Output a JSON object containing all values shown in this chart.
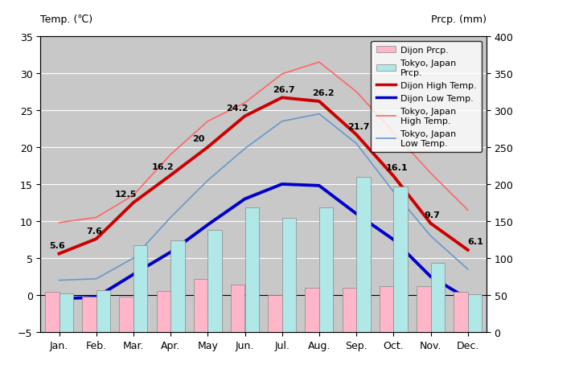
{
  "months": [
    "Jan.",
    "Feb.",
    "Mar.",
    "Apr.",
    "May",
    "Jun.",
    "Jul.",
    "Aug.",
    "Sep.",
    "Oct.",
    "Nov.",
    "Dec."
  ],
  "dijon_high": [
    5.6,
    7.6,
    12.5,
    16.2,
    20.0,
    24.2,
    26.7,
    26.2,
    21.7,
    16.1,
    9.7,
    6.1
  ],
  "dijon_low": [
    -0.5,
    -0.3,
    2.8,
    5.8,
    9.5,
    13.0,
    15.0,
    14.8,
    11.0,
    7.5,
    2.5,
    -0.5
  ],
  "dijon_prcp": [
    54,
    48,
    48,
    55,
    72,
    64,
    50,
    60,
    60,
    62,
    62,
    54
  ],
  "tokyo_high": [
    9.8,
    10.5,
    13.5,
    19.0,
    23.5,
    26.0,
    29.9,
    31.5,
    27.5,
    22.0,
    16.5,
    11.5
  ],
  "tokyo_low": [
    2.0,
    2.2,
    5.0,
    10.5,
    15.5,
    19.8,
    23.5,
    24.5,
    20.5,
    14.0,
    8.0,
    3.5
  ],
  "tokyo_prcp": [
    52,
    56,
    117,
    124,
    138,
    168,
    154,
    168,
    210,
    197,
    93,
    51
  ],
  "dijon_high_color": "#cc0000",
  "dijon_low_color": "#0000cc",
  "tokyo_high_color": "#ff6666",
  "tokyo_low_color": "#6699cc",
  "dijon_prcp_color": "#ffb6c8",
  "tokyo_prcp_color": "#b0e8e8",
  "temp_ylim": [
    -5,
    35
  ],
  "prcp_ylim": [
    0,
    400
  ],
  "temp_yticks": [
    -5,
    0,
    5,
    10,
    15,
    20,
    25,
    30,
    35
  ],
  "prcp_yticks": [
    0,
    50,
    100,
    150,
    200,
    250,
    300,
    350,
    400
  ],
  "title_left": "Temp. (℃)",
  "title_right": "Prcp. (mm)",
  "bg_color": "#c8c8c8",
  "label_dijon_high": [
    "5.6",
    "7.6",
    "12.5",
    "16.2",
    "20",
    "24.2",
    "26.7",
    "26.2",
    "21.7",
    "16.1",
    "9.7",
    "6.1"
  ],
  "label_fontsize": 8
}
